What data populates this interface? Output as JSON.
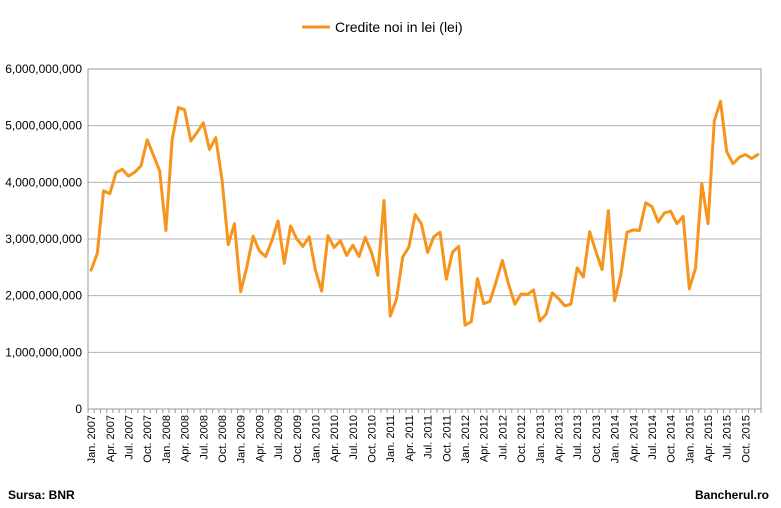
{
  "chart_data": {
    "type": "line",
    "title": "",
    "xlabel": "",
    "ylabel": "",
    "ylim": [
      0,
      6000000000
    ],
    "y_ticks": [
      "0",
      "1,000,000,000",
      "2,000,000,000",
      "3,000,000,000",
      "4,000,000,000",
      "5,000,000,000",
      "6,000,000,000"
    ],
    "grid": "horizontal",
    "legend_position": "top-center",
    "categories": [
      "Jan. 2007",
      "Feb. 2007",
      "Mar. 2007",
      "Apr. 2007",
      "May 2007",
      "Jun. 2007",
      "Jul. 2007",
      "Aug. 2007",
      "Sep. 2007",
      "Oct. 2007",
      "Nov. 2007",
      "Dec. 2007",
      "Jan. 2008",
      "Feb. 2008",
      "Mar. 2008",
      "Apr. 2008",
      "May 2008",
      "Jun. 2008",
      "Jul. 2008",
      "Aug. 2008",
      "Sep. 2008",
      "Oct. 2008",
      "Nov. 2008",
      "Dec. 2008",
      "Jan. 2009",
      "Feb. 2009",
      "Mar. 2009",
      "Apr. 2009",
      "May 2009",
      "Jun. 2009",
      "Jul. 2009",
      "Aug. 2009",
      "Sep. 2009",
      "Oct. 2009",
      "Nov. 2009",
      "Dec. 2009",
      "Jan. 2010",
      "Feb. 2010",
      "Mar. 2010",
      "Apr. 2010",
      "May 2010",
      "Jun. 2010",
      "Jul. 2010",
      "Aug. 2010",
      "Sep. 2010",
      "Oct. 2010",
      "Nov. 2010",
      "Dec. 2010",
      "Jan. 2011",
      "Feb. 2011",
      "Mar. 2011",
      "Apr. 2011",
      "May 2011",
      "Jun. 2011",
      "Jul. 2011",
      "Aug. 2011",
      "Sep. 2011",
      "Oct. 2011",
      "Nov. 2011",
      "Dec. 2011",
      "Jan. 2012",
      "Feb. 2012",
      "Mar. 2012",
      "Apr. 2012",
      "May 2012",
      "Jun. 2012",
      "Jul. 2012",
      "Aug. 2012",
      "Sep. 2012",
      "Oct. 2012",
      "Nov. 2012",
      "Dec. 2012",
      "Jan. 2013",
      "Feb. 2013",
      "Mar. 2013",
      "Apr. 2013",
      "May 2013",
      "Jun. 2013",
      "Jul. 2013",
      "Aug. 2013",
      "Sep. 2013",
      "Oct. 2013",
      "Nov. 2013",
      "Dec. 2013",
      "Jan. 2014",
      "Feb. 2014",
      "Mar. 2014",
      "Apr. 2014",
      "May 2014",
      "Jun. 2014",
      "Jul. 2014",
      "Aug. 2014",
      "Sep. 2014",
      "Oct. 2014",
      "Nov. 2014",
      "Dec. 2014",
      "Jan. 2015",
      "Feb. 2015",
      "Mar. 2015",
      "Apr. 2015",
      "May 2015",
      "Jun. 2015",
      "Jul. 2015",
      "Aug. 2015",
      "Sep. 2015",
      "Oct. 2015",
      "Nov. 2015",
      "Dec. 2015"
    ],
    "label_every": 3,
    "series": [
      {
        "name": "Credite noi in lei (lei)",
        "color": "#F7941D",
        "values": [
          2450000000,
          2750000000,
          3850000000,
          3800000000,
          4170000000,
          4230000000,
          4110000000,
          4180000000,
          4290000000,
          4750000000,
          4480000000,
          4200000000,
          3150000000,
          4750000000,
          5320000000,
          5280000000,
          4730000000,
          4880000000,
          5050000000,
          4580000000,
          4790000000,
          4050000000,
          2900000000,
          3270000000,
          2070000000,
          2510000000,
          3050000000,
          2790000000,
          2690000000,
          2970000000,
          3320000000,
          2570000000,
          3230000000,
          3000000000,
          2870000000,
          3040000000,
          2450000000,
          2080000000,
          3060000000,
          2850000000,
          2970000000,
          2710000000,
          2890000000,
          2690000000,
          3030000000,
          2760000000,
          2360000000,
          3680000000,
          1640000000,
          1940000000,
          2680000000,
          2860000000,
          3430000000,
          3270000000,
          2760000000,
          3040000000,
          3120000000,
          2290000000,
          2770000000,
          2870000000,
          1480000000,
          1540000000,
          2300000000,
          1860000000,
          1900000000,
          2250000000,
          2620000000,
          2200000000,
          1850000000,
          2030000000,
          2020000000,
          2100000000,
          1550000000,
          1670000000,
          2050000000,
          1950000000,
          1820000000,
          1850000000,
          2490000000,
          2330000000,
          3130000000,
          2780000000,
          2460000000,
          3500000000,
          1910000000,
          2360000000,
          3120000000,
          3160000000,
          3150000000,
          3640000000,
          3570000000,
          3300000000,
          3460000000,
          3490000000,
          3270000000,
          3400000000,
          2120000000,
          2490000000,
          3980000000,
          3270000000,
          5080000000,
          5430000000,
          4540000000,
          4330000000,
          4440000000,
          4490000000,
          4420000000,
          4490000000
        ]
      }
    ]
  },
  "footer": {
    "source": "Sursa: BNR",
    "brand": "Bancherul.ro"
  }
}
